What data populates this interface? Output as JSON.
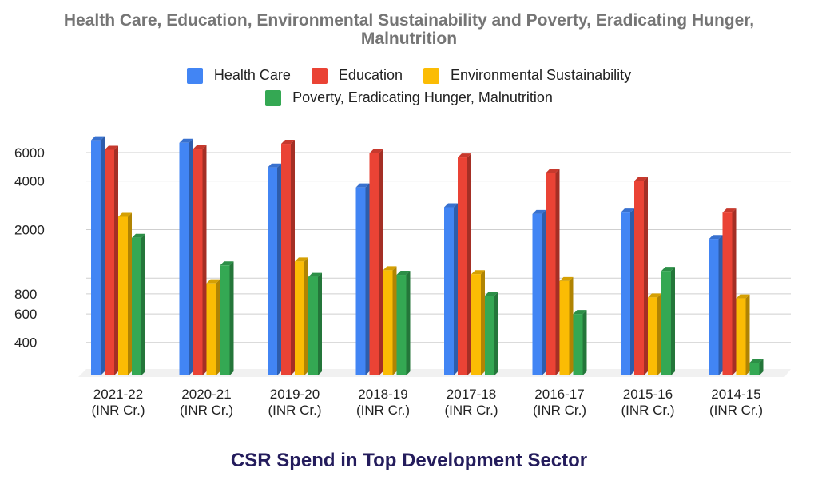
{
  "chart_data": {
    "type": "bar",
    "title": "Health Care, Education, Environmental Sustainability and Poverty, Eradicating Hunger, Malnutrition",
    "caption": "CSR Spend in Top Development Sector",
    "xlabel": "",
    "ylabel": "",
    "yscale": "log",
    "ylim": [
      250,
      7800
    ],
    "yticks": [
      400,
      600,
      800,
      2000,
      4000,
      6000
    ],
    "grid": true,
    "legend_position": "top",
    "categories": [
      "2021-22",
      "2020-21",
      "2019-20",
      "2018-19",
      "2017-18",
      "2016-17",
      "2015-16",
      "2014-15"
    ],
    "category_units": [
      "(INR Cr.)",
      "(INR Cr.)",
      "(INR Cr.)",
      "(INR Cr.)",
      "(INR Cr.)",
      "(INR Cr.)",
      "(INR Cr.)",
      "(INR Cr.)"
    ],
    "series": [
      {
        "name": "Health Care",
        "color": "#4285f4",
        "values": [
          7150,
          6900,
          4850,
          3650,
          2750,
          2500,
          2550,
          1750
        ]
      },
      {
        "name": "Education",
        "color": "#ea4335",
        "values": [
          6250,
          6300,
          6800,
          5950,
          5600,
          4500,
          4000,
          2550
        ]
      },
      {
        "name": "Environmental Sustainability",
        "color": "#fbbc04",
        "values": [
          2400,
          930,
          1270,
          1120,
          1060,
          960,
          760,
          750
        ]
      },
      {
        "name": "Poverty, Eradicating Hunger, Malnutrition",
        "color": "#34a853",
        "values": [
          1780,
          1200,
          1020,
          1050,
          780,
          600,
          1110,
          300
        ]
      }
    ]
  }
}
